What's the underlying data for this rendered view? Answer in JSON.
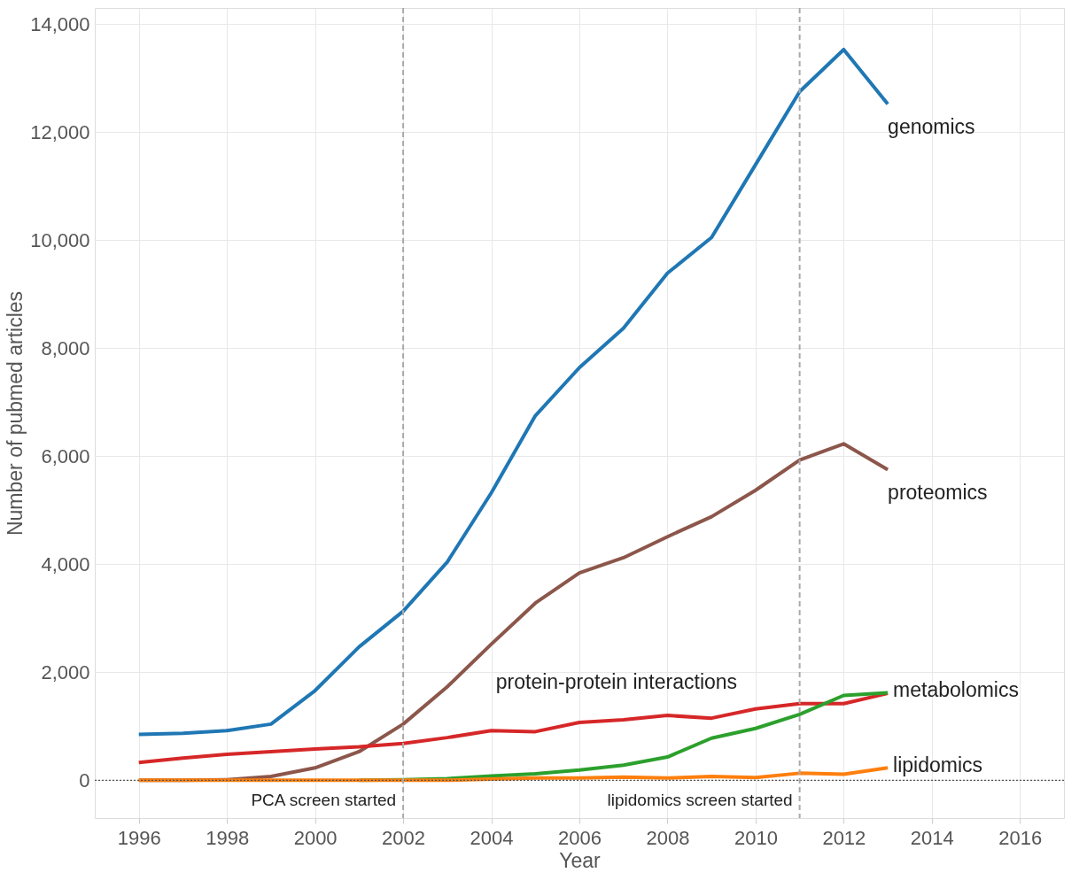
{
  "chart_data": {
    "type": "line",
    "xlabel": "Year",
    "ylabel": "Number of pubmed articles",
    "x": [
      1996,
      1997,
      1998,
      1999,
      2000,
      2001,
      2002,
      2003,
      2004,
      2005,
      2006,
      2007,
      2008,
      2009,
      2010,
      2011,
      2012,
      2013
    ],
    "series": [
      {
        "name": "genomics",
        "color": "#1f77b4",
        "values": [
          850,
          870,
          920,
          1040,
          1660,
          2470,
          3130,
          4040,
          5320,
          6750,
          7640,
          8370,
          9390,
          10050,
          11400,
          12750,
          13530,
          12520
        ]
      },
      {
        "name": "proteomics",
        "color": "#8c564b",
        "values": [
          0,
          0,
          10,
          70,
          230,
          530,
          1040,
          1730,
          2520,
          3280,
          3840,
          4120,
          4510,
          4880,
          5370,
          5930,
          6230,
          5750
        ]
      },
      {
        "name": "protein-protein interactions",
        "color": "#d62728",
        "values": [
          330,
          410,
          480,
          530,
          580,
          620,
          680,
          790,
          920,
          900,
          1070,
          1120,
          1200,
          1150,
          1320,
          1420,
          1420,
          1610
        ]
      },
      {
        "name": "metabolomics",
        "color": "#2ca02c",
        "values": [
          null,
          null,
          null,
          null,
          null,
          0,
          10,
          30,
          80,
          120,
          190,
          280,
          430,
          780,
          960,
          1220,
          1570,
          1620
        ]
      },
      {
        "name": "lipidomics",
        "color": "#ff7f0e",
        "values": [
          0,
          0,
          0,
          0,
          0,
          0,
          0,
          0,
          20,
          40,
          40,
          60,
          40,
          70,
          50,
          130,
          110,
          230
        ]
      }
    ],
    "xlim": [
      1995,
      2017
    ],
    "xticks": [
      1996,
      1998,
      2000,
      2002,
      2004,
      2006,
      2008,
      2010,
      2012,
      2014,
      2016
    ],
    "ylim": [
      -700,
      14300
    ],
    "yticks": [
      0,
      {
        "value": 2000,
        "label": "2,000"
      },
      {
        "value": 4000,
        "label": "4,000"
      },
      {
        "value": 6000,
        "label": "6,000"
      },
      {
        "value": 8000,
        "label": "8,000"
      },
      {
        "value": 10000,
        "label": "10,000"
      },
      {
        "value": 12000,
        "label": "12,000"
      },
      {
        "value": 14000,
        "label": "14,000"
      }
    ],
    "ref_lines": [
      {
        "axis": "y",
        "value": 0,
        "label": null,
        "color": "#555555",
        "line_style": "dotted"
      },
      {
        "axis": "x",
        "value": 2002,
        "label": "PCA screen started",
        "color": "#aaaaaa",
        "line_style": "dashed"
      },
      {
        "axis": "x",
        "value": 2011,
        "label": "lipidomics screen started",
        "color": "#aaaaaa",
        "line_style": "dashed"
      }
    ],
    "grid": true,
    "line_style": "solid",
    "marker": "none"
  }
}
